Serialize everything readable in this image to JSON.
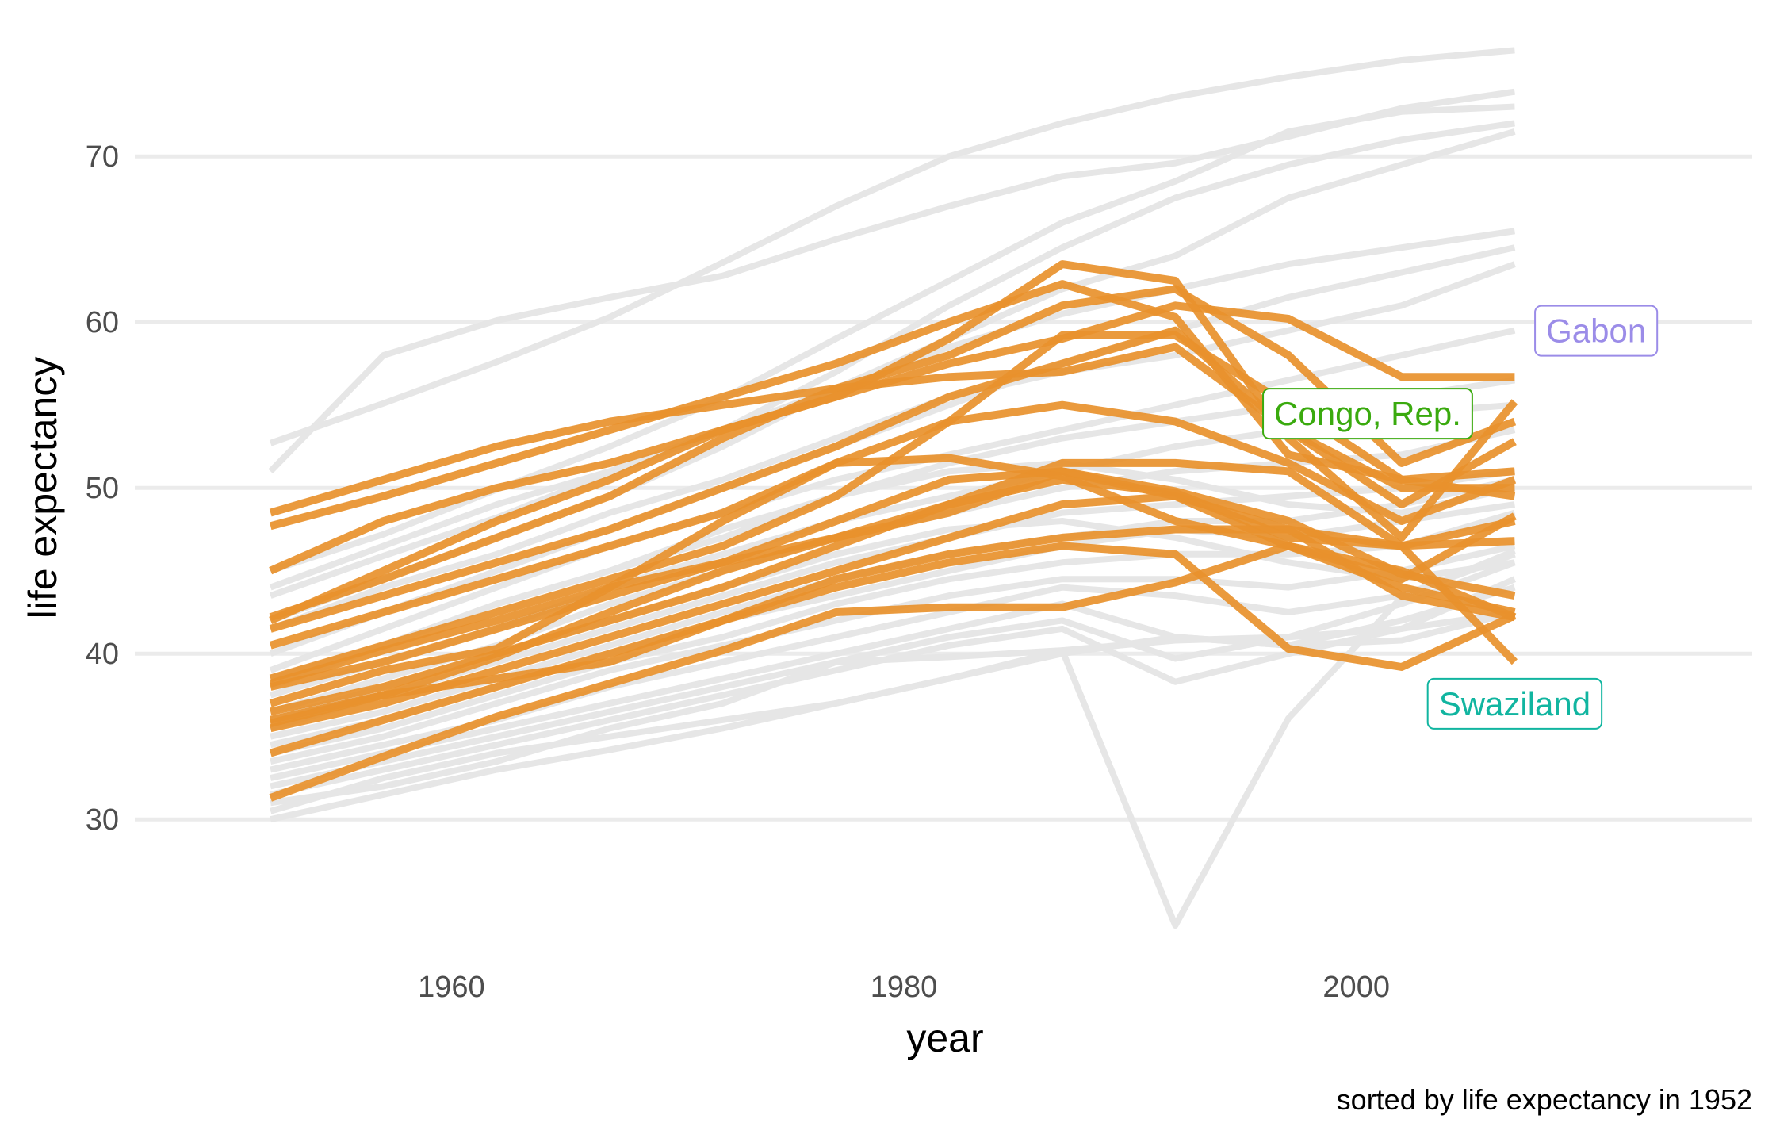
{
  "chart_data": {
    "type": "line",
    "xlabel": "year",
    "ylabel": "life expectancy",
    "caption": "sorted by life expectancy in 1952",
    "xlim": [
      1946,
      2017.5
    ],
    "ylim": [
      22.5,
      78
    ],
    "x_ticks": [
      1960,
      1980,
      2000
    ],
    "x_tick_labels": [
      "1960",
      "1980",
      "2000"
    ],
    "y_ticks": [
      30,
      40,
      50,
      60,
      70
    ],
    "y_tick_labels": [
      "30",
      "40",
      "50",
      "60",
      "70"
    ],
    "grid": true,
    "x": [
      1952,
      1957,
      1962,
      1967,
      1972,
      1977,
      1982,
      1987,
      1992,
      1997,
      2002,
      2007
    ],
    "colors": {
      "background_series": "#e6e6e6",
      "highlight_series": "#e8912d"
    },
    "background_series": [
      {
        "values": [
          52.7,
          55.1,
          57.6,
          60.3,
          63.6,
          67.0,
          70.0,
          72.0,
          73.6,
          74.8,
          75.8,
          76.4
        ]
      },
      {
        "values": [
          51.0,
          58.0,
          60.1,
          61.5,
          62.8,
          65.0,
          67.0,
          68.8,
          69.6,
          71.2,
          72.9,
          73.9
        ]
      },
      {
        "values": [
          45.0,
          47.2,
          49.9,
          52.5,
          55.4,
          59.0,
          62.5,
          66.0,
          68.5,
          71.5,
          72.7,
          73.0
        ]
      },
      {
        "values": [
          43.5,
          45.9,
          48.2,
          50.9,
          53.5,
          57.0,
          61.0,
          64.5,
          67.5,
          69.5,
          71.0,
          72.0
        ]
      },
      {
        "values": [
          42.0,
          44.5,
          47.0,
          49.5,
          52.5,
          56.0,
          59.0,
          62.0,
          64.0,
          67.5,
          69.5,
          71.5
        ]
      },
      {
        "values": [
          44.0,
          46.5,
          49.0,
          51.0,
          53.5,
          56.0,
          58.5,
          60.5,
          62.0,
          63.5,
          64.5,
          65.5
        ]
      },
      {
        "values": [
          40.0,
          42.5,
          45.0,
          47.5,
          50.0,
          52.5,
          55.0,
          57.5,
          59.5,
          61.5,
          63.0,
          64.5
        ]
      },
      {
        "values": [
          41.5,
          44.0,
          46.0,
          48.5,
          50.5,
          53.0,
          55.5,
          57.0,
          58.0,
          59.5,
          61.0,
          63.5
        ]
      },
      {
        "values": [
          39.0,
          41.5,
          44.0,
          46.5,
          48.5,
          50.5,
          52.0,
          53.5,
          55.0,
          56.5,
          58.0,
          59.5
        ]
      },
      {
        "values": [
          38.0,
          40.5,
          43.0,
          45.0,
          47.0,
          49.5,
          51.5,
          53.0,
          54.0,
          55.0,
          55.5,
          56.5
        ]
      },
      {
        "values": [
          37.5,
          39.5,
          41.5,
          44.0,
          46.0,
          48.0,
          49.5,
          51.0,
          52.5,
          53.5,
          54.5,
          55.0
        ]
      },
      {
        "values": [
          36.5,
          38.5,
          40.5,
          43.0,
          45.0,
          47.0,
          48.5,
          50.0,
          51.0,
          51.5,
          52.0,
          53.5
        ]
      },
      {
        "values": [
          35.5,
          37.5,
          39.5,
          41.5,
          43.5,
          45.5,
          47.0,
          48.5,
          49.0,
          49.5,
          50.0,
          51.0
        ]
      },
      {
        "values": [
          35.0,
          36.5,
          38.5,
          40.5,
          42.5,
          44.5,
          46.0,
          47.0,
          48.0,
          48.0,
          49.0,
          50.5
        ]
      },
      {
        "values": [
          34.5,
          36.0,
          38.0,
          40.0,
          42.0,
          43.5,
          45.0,
          46.5,
          47.5,
          47.0,
          48.0,
          49.0
        ]
      },
      {
        "values": [
          34.0,
          35.5,
          37.5,
          39.5,
          41.0,
          43.0,
          44.5,
          45.5,
          46.0,
          46.0,
          46.5,
          48.5
        ]
      },
      {
        "values": [
          33.5,
          35.0,
          37.0,
          39.0,
          40.5,
          42.0,
          43.5,
          44.5,
          44.5,
          44.0,
          45.0,
          46.5
        ]
      },
      {
        "values": [
          33.0,
          34.5,
          36.0,
          38.0,
          39.5,
          41.0,
          42.5,
          44.0,
          43.5,
          42.5,
          43.5,
          46.0
        ]
      },
      {
        "values": [
          32.5,
          34.0,
          35.5,
          37.0,
          38.5,
          40.0,
          41.5,
          43.0,
          41.0,
          40.5,
          42.0,
          44.0
        ]
      },
      {
        "values": [
          32.0,
          33.5,
          35.0,
          36.5,
          38.0,
          39.5,
          41.0,
          42.0,
          39.7,
          41.0,
          43.0,
          45.5
        ]
      },
      {
        "values": [
          31.5,
          33.0,
          34.5,
          36.0,
          37.5,
          39.0,
          40.5,
          41.5,
          38.3,
          40.0,
          41.5,
          44.5
        ]
      },
      {
        "values": [
          30.5,
          32.5,
          34.0,
          35.0,
          36.0,
          37.0,
          38.5,
          40.0,
          41.0,
          40.5,
          40.8,
          42.5
        ]
      },
      {
        "values": [
          30.0,
          31.5,
          33.0,
          34.2,
          35.5,
          37.0,
          38.5,
          40.2,
          23.6,
          36.1,
          43.4,
          46.2
        ]
      },
      {
        "values": [
          31.0,
          32.0,
          33.5,
          35.5,
          37.0,
          39.5,
          39.8,
          40.2,
          40.8,
          41.0,
          41.5,
          42.5
        ]
      },
      {
        "values": [
          36.0,
          38.0,
          40.0,
          42.0,
          44.0,
          46.0,
          47.5,
          48.0,
          47.0,
          45.5,
          44.5,
          45.5
        ]
      },
      {
        "values": [
          38.5,
          40.5,
          43.0,
          45.0,
          47.5,
          49.5,
          51.0,
          51.5,
          50.5,
          49.0,
          48.5,
          50.0
        ]
      }
    ],
    "highlight_series": [
      {
        "values": [
          48.5,
          50.5,
          52.5,
          54.0,
          55.0,
          56.0,
          56.7,
          57.0,
          58.5,
          53.5,
          50.0,
          50.0
        ]
      },
      {
        "values": [
          47.7,
          49.5,
          51.5,
          53.5,
          55.5,
          57.5,
          60.0,
          62.3,
          60.3,
          52.0,
          50.5,
          51.0
        ]
      },
      {
        "values": [
          45.0,
          48.0,
          50.0,
          51.5,
          53.5,
          55.5,
          57.5,
          59.0,
          61.0,
          60.2,
          56.7,
          56.7
        ]
      },
      {
        "values": [
          42.2,
          44.5,
          47.0,
          49.5,
          53.0,
          56.0,
          58.0,
          61.0,
          62.0,
          58.0,
          51.5,
          54.0
        ]
      },
      {
        "values": [
          42.0,
          45.0,
          48.0,
          50.5,
          53.5,
          55.5,
          59.0,
          63.5,
          62.5,
          53.0,
          47.0,
          55.2
        ]
      },
      {
        "values": [
          41.5,
          43.5,
          45.5,
          47.5,
          50.0,
          52.5,
          55.5,
          57.5,
          59.5,
          53.5,
          49.0,
          52.8
        ]
      },
      {
        "values": [
          40.5,
          42.5,
          44.5,
          46.5,
          48.5,
          51.5,
          54.0,
          55.0,
          54.0,
          51.5,
          48.0,
          50.5
        ]
      },
      {
        "values": [
          38.5,
          40.5,
          42.5,
          44.5,
          46.5,
          49.5,
          54.0,
          59.2,
          59.2,
          55.0,
          50.5,
          49.5
        ]
      },
      {
        "values": [
          38.0,
          39.5,
          41.5,
          43.5,
          45.5,
          48.0,
          50.5,
          51.0,
          49.5,
          47.5,
          46.5,
          48.0
        ]
      },
      {
        "values": [
          37.0,
          39.0,
          40.3,
          44.0,
          48.0,
          51.5,
          51.8,
          50.7,
          48.0,
          46.5,
          44.0,
          42.5
        ]
      },
      {
        "values": [
          36.5,
          38.0,
          40.0,
          42.0,
          44.0,
          46.5,
          49.0,
          51.5,
          51.5,
          51.0,
          46.5,
          39.5
        ]
      },
      {
        "values": [
          36.0,
          37.5,
          38.5,
          39.5,
          42.0,
          44.5,
          46.0,
          47.0,
          47.5,
          47.5,
          43.5,
          42.2
        ]
      },
      {
        "values": [
          35.5,
          37.0,
          39.0,
          41.0,
          43.0,
          45.0,
          47.0,
          49.0,
          49.5,
          46.5,
          44.5,
          48.3
        ]
      },
      {
        "values": [
          34.0,
          36.0,
          38.0,
          40.0,
          42.0,
          44.0,
          45.5,
          46.5,
          46.0,
          40.3,
          39.2,
          42.3
        ]
      },
      {
        "values": [
          31.3,
          33.8,
          36.2,
          38.2,
          40.2,
          42.5,
          42.8,
          42.8,
          44.3,
          46.5,
          45.0,
          42.2
        ]
      },
      {
        "values": [
          35.8,
          37.5,
          39.8,
          42.5,
          45.0,
          47.0,
          49.0,
          50.5,
          49.7,
          47.0,
          46.5,
          46.8
        ]
      },
      {
        "values": [
          38.2,
          40.2,
          42.0,
          44.0,
          45.5,
          47.0,
          48.5,
          51.0,
          49.8,
          48.0,
          44.8,
          43.5
        ]
      }
    ],
    "annotations": [
      {
        "text": "Gabon",
        "x": 2010.6,
        "y": 59.5,
        "color": "#9b8ce8"
      },
      {
        "text": "Congo, Rep.",
        "x": 2000.5,
        "y": 54.5,
        "color": "#3aaa0e"
      },
      {
        "text": "Swaziland",
        "x": 2007.0,
        "y": 37.0,
        "color": "#11b5a0"
      }
    ]
  }
}
